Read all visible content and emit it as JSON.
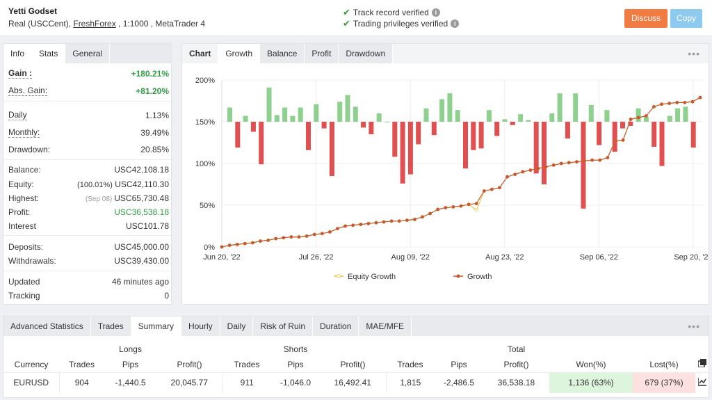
{
  "header": {
    "title": "Yetti Godset",
    "sub_prefix": "Real (USCCent), ",
    "broker": "FreshForex",
    "sub_suffix": " , 1:1000 , MetaTrader 4",
    "verified_track": "Track record verified",
    "verified_trading": "Trading privileges verified",
    "discuss": "Discuss",
    "copy": "Copy",
    "colors": {
      "discuss": "#f07b43",
      "copy": "#8ec9ee",
      "check": "#3a9c3a"
    }
  },
  "info_panel": {
    "tabs": [
      "Info",
      "Stats",
      "General"
    ],
    "active_tab": "Info",
    "gain_label": "Gain :",
    "gain_value": "+180.21%",
    "abs_gain_label": "Abs. Gain:",
    "abs_gain_value": "+81.20%",
    "daily_label": "Daily",
    "daily_value": "1.13%",
    "monthly_label": "Monthly:",
    "monthly_value": "39.49%",
    "drawdown_label": "Drawdown:",
    "drawdown_value": "20.85%",
    "balance_label": "Balance:",
    "balance_value": "USC42,108.18",
    "equity_label": "Equity:",
    "equity_pct": "(100.01%)",
    "equity_value": "USC42,110.30",
    "highest_label": "Highest:",
    "highest_date": "(Sep 08)",
    "highest_value": "USC65,730.48",
    "profit_label": "Profit:",
    "profit_value": "USC36,538.18",
    "interest_label": "Interest",
    "interest_value": "USC101.78",
    "deposits_label": "Deposits:",
    "deposits_value": "USC45,000.00",
    "withdrawals_label": "Withdrawals:",
    "withdrawals_value": "USC39,430.00",
    "updated_label": "Updated",
    "updated_value": "46 minutes ago",
    "tracking_label": "Tracking",
    "tracking_value": "0"
  },
  "chart_panel": {
    "tabs": [
      "Chart",
      "Growth",
      "Balance",
      "Profit",
      "Drawdown"
    ],
    "active_tab": "Growth",
    "dots": "•••"
  },
  "chart_data": {
    "type": "line+bar",
    "y_ticks": [
      "0%",
      "50%",
      "100%",
      "150%",
      "200%"
    ],
    "ylim": [
      0,
      200
    ],
    "x_ticks": [
      "Jun 20, '22",
      "Jul 26, '22",
      "Aug 09, '22",
      "Aug 23, '22",
      "Sep 06, '22",
      "Sep 20, '22"
    ],
    "legend": [
      "Equity Growth",
      "Growth"
    ],
    "series_colors": {
      "equity": "#e8c84a",
      "growth": "#c8582e",
      "bar_pos": "#8ed08e",
      "bar_neg": "#e05050"
    },
    "growth": [
      0,
      2,
      3,
      4,
      5,
      7,
      8,
      10,
      11,
      12,
      12,
      13,
      15,
      16,
      18,
      22,
      25,
      26,
      27,
      28,
      29,
      30,
      31,
      31,
      32,
      33,
      36,
      40,
      45,
      47,
      48,
      49,
      51,
      52,
      67,
      69,
      71,
      84,
      87,
      90,
      92,
      94,
      96,
      98,
      100,
      101,
      102,
      103,
      104,
      104,
      107,
      127,
      128,
      153,
      155,
      157,
      168,
      171,
      172,
      173,
      173,
      174,
      179
    ],
    "equity": [
      0,
      2,
      3,
      4,
      5,
      7,
      8,
      10,
      11,
      12,
      12,
      13,
      15,
      16,
      18,
      22,
      25,
      26,
      27,
      28,
      29,
      30,
      31,
      31,
      32,
      33,
      36,
      40,
      45,
      47,
      48,
      49,
      51,
      44,
      67,
      69,
      71,
      84,
      87,
      90,
      92,
      94,
      96,
      98,
      100,
      101,
      102,
      103,
      104,
      104,
      107,
      127,
      128,
      153,
      155,
      157,
      168,
      171,
      172,
      173,
      173,
      174,
      179
    ],
    "daily_bars": [
      17,
      -31,
      7,
      -12,
      -51,
      41,
      8,
      17,
      7,
      17,
      -34,
      21,
      -8,
      -65,
      24,
      32,
      18,
      -7,
      -15,
      10,
      0,
      -42,
      -74,
      -63,
      -27,
      16,
      -16,
      27,
      34,
      14,
      -56,
      -34,
      -32,
      14,
      -17,
      3,
      -4,
      9,
      2,
      -62,
      -75,
      10,
      34,
      -20,
      34,
      -104,
      20,
      -28,
      14,
      -36,
      -8,
      -5,
      16,
      6,
      -30,
      -53,
      7,
      16,
      18,
      -31
    ]
  },
  "adv_panel": {
    "tabs": [
      "Advanced Statistics",
      "Trades",
      "Summary",
      "Hourly",
      "Daily",
      "Risk of Ruin",
      "Duration",
      "MAE/MFE"
    ],
    "active_tab": "Summary",
    "dots": "•••",
    "groups": {
      "longs": "Longs",
      "shorts": "Shorts",
      "total": "Total"
    },
    "headers": [
      "Currency",
      "Trades",
      "Pips",
      "Profit()",
      "Trades",
      "Pips",
      "Profit()",
      "Trades",
      "Pips",
      "Profit()",
      "Won(%)",
      "Lost(%)"
    ],
    "row": {
      "currency": "EURUSD",
      "long_trades": "904",
      "long_pips": "-1,440.5",
      "long_profit": "20,045.77",
      "short_trades": "911",
      "short_pips": "-1,046.0",
      "short_profit": "16,492.41",
      "total_trades": "1,815",
      "total_pips": "-2,486.5",
      "total_profit": "36,538.18",
      "won": "1,136 (63%)",
      "lost": "679 (37%)"
    }
  }
}
